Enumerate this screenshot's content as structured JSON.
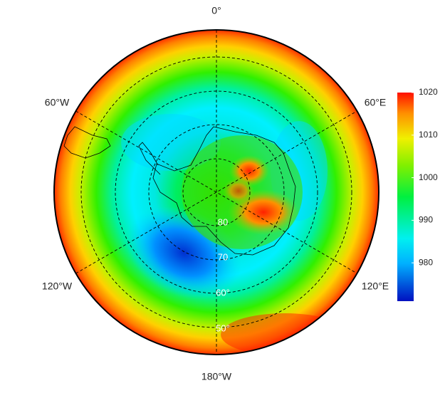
{
  "map": {
    "lon_labels": [
      "0°",
      "60°E",
      "120°E",
      "180°W",
      "120°W",
      "60°W"
    ],
    "lat_labels": [
      "80",
      "70",
      "60°",
      "50°"
    ]
  },
  "colorbar": {
    "lim": [
      971,
      1020
    ],
    "ticks": [
      980,
      990,
      1000,
      1010,
      1020
    ]
  }
}
